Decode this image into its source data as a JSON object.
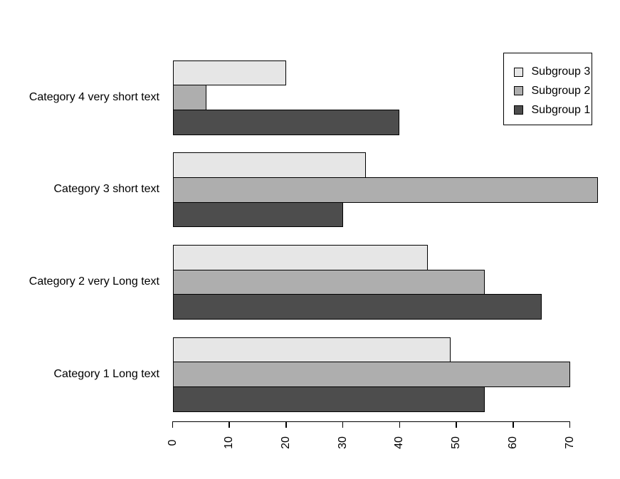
{
  "chart_data": {
    "type": "bar",
    "orientation": "horizontal",
    "title": "",
    "xlabel": "",
    "ylabel": "",
    "background": "#FFFFFF",
    "bar_border_color": "#000000",
    "categories": [
      "Category 4 very short text",
      "Category 3 short text",
      "Category 2 very Long text",
      "Category 1 Long text"
    ],
    "series_note": "series are listed top-to-bottom as drawn within each category group; values follow the categories array order (top group first)",
    "series": [
      {
        "name": "Subgroup 3",
        "color": "#E6E6E6",
        "values": [
          20,
          34,
          45,
          49
        ]
      },
      {
        "name": "Subgroup 2",
        "color": "#AEAEAE",
        "values": [
          6,
          75,
          55,
          70
        ]
      },
      {
        "name": "Subgroup 1",
        "color": "#4D4D4D",
        "values": [
          40,
          30,
          65,
          55
        ]
      }
    ],
    "x_axis": {
      "min": 0,
      "max": 70,
      "ticks": [
        0,
        10,
        20,
        30,
        40,
        50,
        60,
        70
      ],
      "tick_labels": [
        "0",
        "10",
        "20",
        "30",
        "40",
        "50",
        "60",
        "70"
      ],
      "tick_label_rotation_deg": -90,
      "grid": false
    },
    "legend": {
      "position": "top-right",
      "entries_top_to_bottom": [
        "Subgroup 3",
        "Subgroup 2",
        "Subgroup 1"
      ]
    }
  }
}
